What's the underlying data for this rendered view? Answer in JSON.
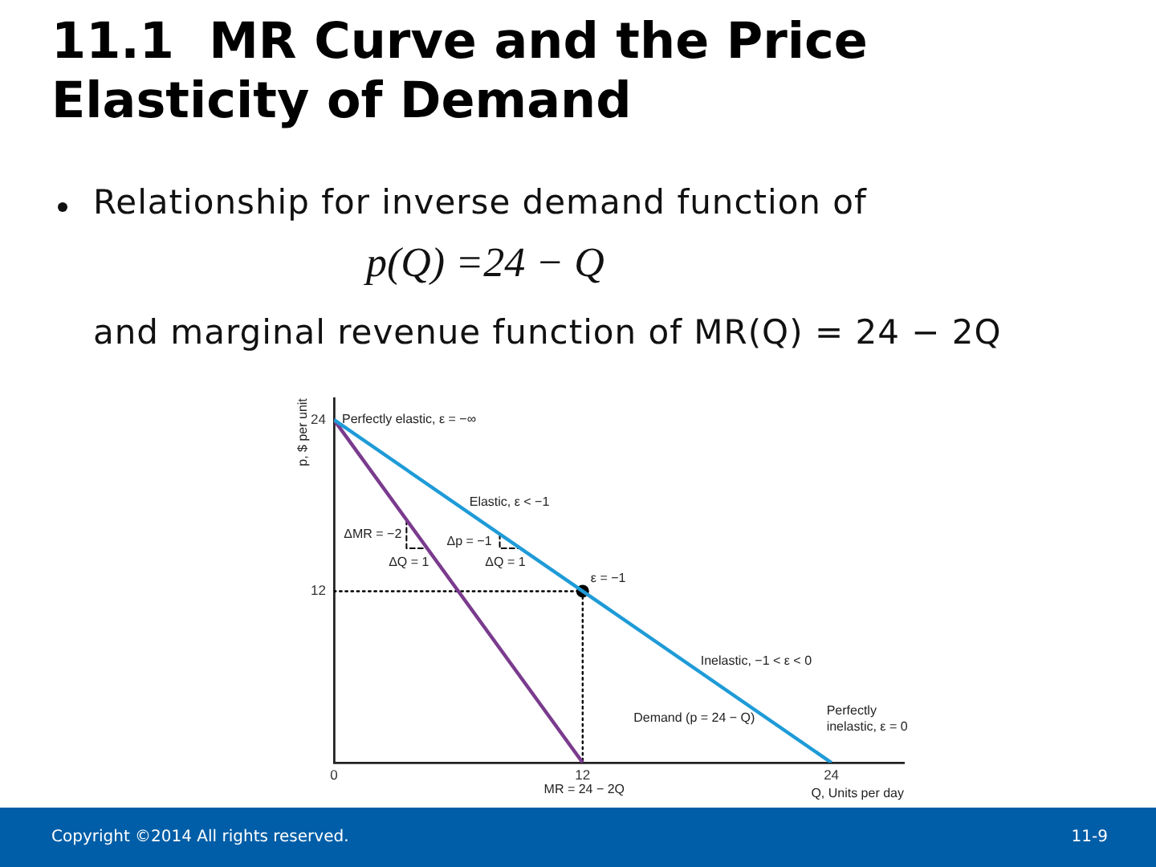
{
  "chart_data": {
    "type": "line",
    "title": "11.1  MR Curve and the Price Elasticity of Demand",
    "subtitle": "Relationship for inverse demand function of\np(Q) =24 − Q\nand marginal revenue function of MR(Q) = 24 − 2Q",
    "xlabel": "Q, Units per day",
    "ylabel": "p, $ per unit",
    "xlim": [
      0,
      27.5
    ],
    "ylim": [
      0,
      25.5
    ],
    "xticks": [
      0,
      12,
      24
    ],
    "yticks": [
      12,
      24
    ],
    "series": [
      {
        "color": "#1e9bd7",
        "x": [
          0,
          24
        ],
        "values": [
          24,
          0
        ]
      },
      {
        "color": "#7a3b8e",
        "x": [
          0,
          12
        ],
        "values": [
          24,
          0
        ]
      },
      {
        "color": "#000000",
        "line_style": "dotted",
        "x": [
          0,
          12,
          12
        ],
        "values": [
          12,
          12,
          0
        ]
      },
      {
        "color": "#000000",
        "line_style": "dashed",
        "x": [
          3.5,
          3.5,
          4.5
        ],
        "values": [
          17,
          15,
          15
        ]
      },
      {
        "color": "#000000",
        "line_style": "dashed",
        "x": [
          8,
          8,
          9
        ],
        "values": [
          16,
          15,
          15
        ]
      },
      {
        "type": "scatter",
        "color": "#000000",
        "marker": "circle",
        "x": [
          12
        ],
        "values": [
          12
        ]
      }
    ],
    "annotations": [
      {
        "text": "Perfectly elastic, ε = −∞",
        "x": 0,
        "y": 24
      },
      {
        "text": "Elastic, ε < −1",
        "x": 7,
        "y": 17
      },
      {
        "text": "ΔMR = −2",
        "x": 3.5,
        "y": 16
      },
      {
        "text": "ΔQ = 1",
        "x": 4,
        "y": 15
      },
      {
        "text": "Δp = −1",
        "x": 8,
        "y": 15.5
      },
      {
        "text": "ΔQ = 1",
        "x": 8.5,
        "y": 15
      },
      {
        "text": "ε = −1",
        "x": 12,
        "y": 12
      },
      {
        "text": "Inelastic, −1 < ε < 0",
        "x": 18,
        "y": 6
      },
      {
        "text": "Demand (p = 24 − Q)",
        "x": 20,
        "y": 4
      },
      {
        "text": "Perfectly\ninelastic, ε = 0",
        "x": 24,
        "y": 0
      },
      {
        "text": "MR = 24 − 2Q",
        "x": 12,
        "y": 0
      },
      "Copyright ©2014 All rights reserved.",
      "11-9"
    ]
  }
}
